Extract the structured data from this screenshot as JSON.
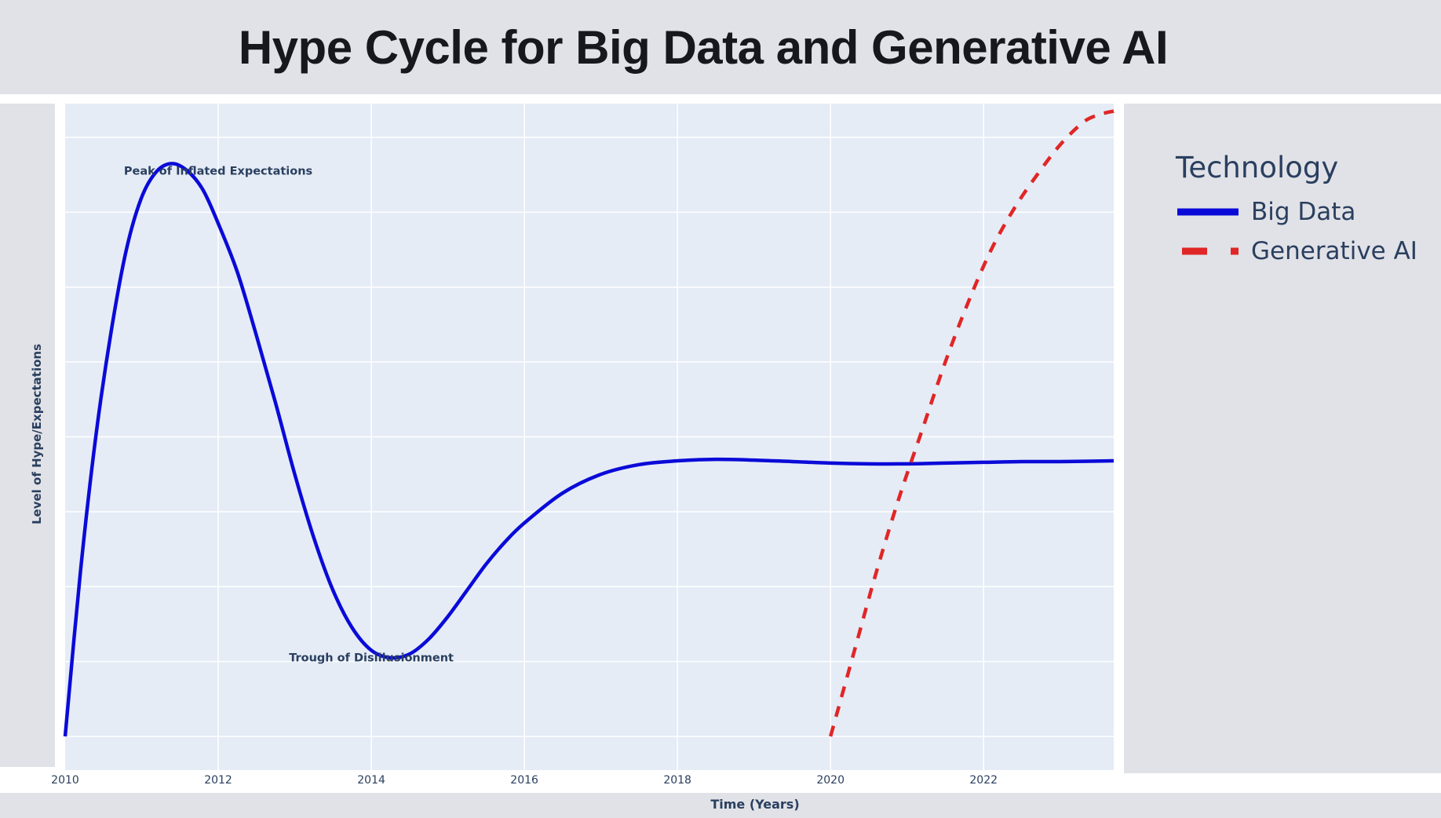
{
  "title": "Hype Cycle for Big Data and Generative AI",
  "colors": {
    "plot_bg": "#e5ecf6",
    "grid": "#ffffff",
    "axis_text": "#2a3f5f",
    "big_data": "#0a0ad8",
    "generative_ai": "#e02626"
  },
  "chart_data": {
    "type": "line",
    "title": "Hype Cycle for Big Data and Generative AI",
    "xlabel": "Time (Years)",
    "ylabel": "Level of Hype/Expectations",
    "xlim": [
      2010,
      2023.7
    ],
    "ylim": [
      -0.45,
      8.45
    ],
    "x_ticks": [
      2010,
      2012,
      2014,
      2016,
      2018,
      2020,
      2022
    ],
    "y_ticks_labeled": false,
    "grid": true,
    "legend": {
      "title": "Technology",
      "position": "right"
    },
    "annotations": [
      {
        "text": "Peak of Inflated Expectations",
        "x": 2012,
        "y": 7.5
      },
      {
        "text": "Trough of Disillusionment",
        "x": 2014,
        "y": 1.0
      }
    ],
    "series": [
      {
        "name": "Big Data",
        "style": "solid",
        "x": [
          2010,
          2010.2,
          2010.4,
          2010.6,
          2010.8,
          2011.0,
          2011.2,
          2011.4,
          2011.6,
          2011.8,
          2012.0,
          2012.25,
          2012.5,
          2012.75,
          2013.0,
          2013.25,
          2013.5,
          2013.75,
          2014.0,
          2014.25,
          2014.5,
          2014.75,
          2015.0,
          2015.25,
          2015.5,
          2015.75,
          2016.0,
          2016.5,
          2017.0,
          2017.5,
          2018.0,
          2018.5,
          2019.0,
          2019.5,
          2020.0,
          2020.5,
          2021.0,
          2021.5,
          2022.0,
          2022.5,
          2023.0,
          2023.7
        ],
        "y": [
          0.0,
          2.2,
          4.0,
          5.4,
          6.5,
          7.2,
          7.55,
          7.65,
          7.55,
          7.3,
          6.85,
          6.2,
          5.35,
          4.45,
          3.5,
          2.65,
          1.95,
          1.45,
          1.15,
          1.05,
          1.1,
          1.3,
          1.6,
          1.95,
          2.3,
          2.6,
          2.85,
          3.25,
          3.5,
          3.63,
          3.68,
          3.7,
          3.69,
          3.67,
          3.65,
          3.64,
          3.64,
          3.65,
          3.66,
          3.67,
          3.67,
          3.68
        ]
      },
      {
        "name": "Generative AI",
        "style": "dashed",
        "x": [
          2020.0,
          2020.3,
          2020.6,
          2020.9,
          2021.2,
          2021.5,
          2021.8,
          2022.1,
          2022.4,
          2022.7,
          2023.0,
          2023.3,
          2023.5,
          2023.7
        ],
        "y": [
          0.0,
          1.1,
          2.2,
          3.2,
          4.1,
          5.0,
          5.8,
          6.5,
          7.05,
          7.5,
          7.9,
          8.2,
          8.3,
          8.35
        ]
      }
    ]
  }
}
